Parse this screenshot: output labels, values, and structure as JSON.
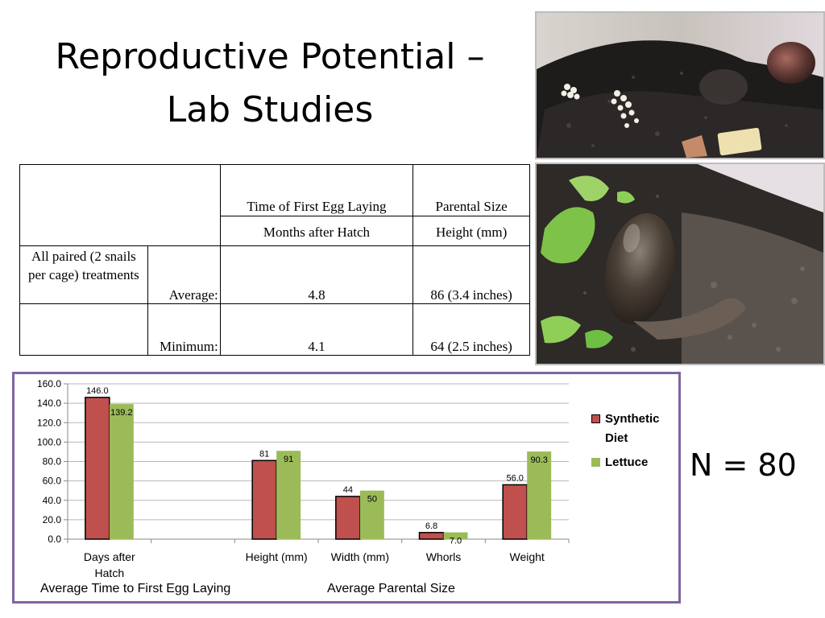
{
  "slide": {
    "title_line1": "Reproductive Potential –",
    "title_line2": "Lab Studies",
    "n_label": "N = 80"
  },
  "table": {
    "header": {
      "col1": "Time of First Egg Laying",
      "col2": "Parental Size"
    },
    "subheader": {
      "col1": "Months after Hatch",
      "col2": "Height (mm)"
    },
    "rows": [
      {
        "group": "All paired (2 snails per cage) treatments",
        "label": "Average:",
        "time": "4.8",
        "size": "86 (3.4 inches)"
      },
      {
        "group": "",
        "label": "Minimum:",
        "time": "4.1",
        "size": "64 (2.5 inches)"
      }
    ]
  },
  "photos": [
    {
      "name": "snail eggs in soil photo"
    },
    {
      "name": "snail on soil with lettuce photo"
    }
  ],
  "chart_data": {
    "type": "bar",
    "categories": [
      "Days after Hatch",
      "",
      "Height (mm)",
      "Width (mm)",
      "Whorls",
      "Weight"
    ],
    "series": [
      {
        "name": "Synthetic Diet",
        "color": "#c0504d",
        "values": [
          146.0,
          null,
          81,
          44,
          6.8,
          56.0
        ],
        "labels": [
          "146.0",
          "",
          "81",
          "44",
          "6.8",
          "56.0"
        ]
      },
      {
        "name": "Lettuce",
        "color": "#9bbb59",
        "values": [
          139.2,
          null,
          91,
          50,
          7.0,
          90.3
        ],
        "labels": [
          "139.2",
          "",
          "91",
          "50",
          "7.0",
          "90.3"
        ]
      }
    ],
    "ylim": [
      0,
      160
    ],
    "yticks": [
      "0.0",
      "20.0",
      "40.0",
      "60.0",
      "80.0",
      "100.0",
      "120.0",
      "140.0",
      "160.0"
    ],
    "grid": true,
    "legend_position": "right",
    "group_titles": [
      "Average Time to First Egg Laying",
      "Average Parental Size"
    ]
  }
}
